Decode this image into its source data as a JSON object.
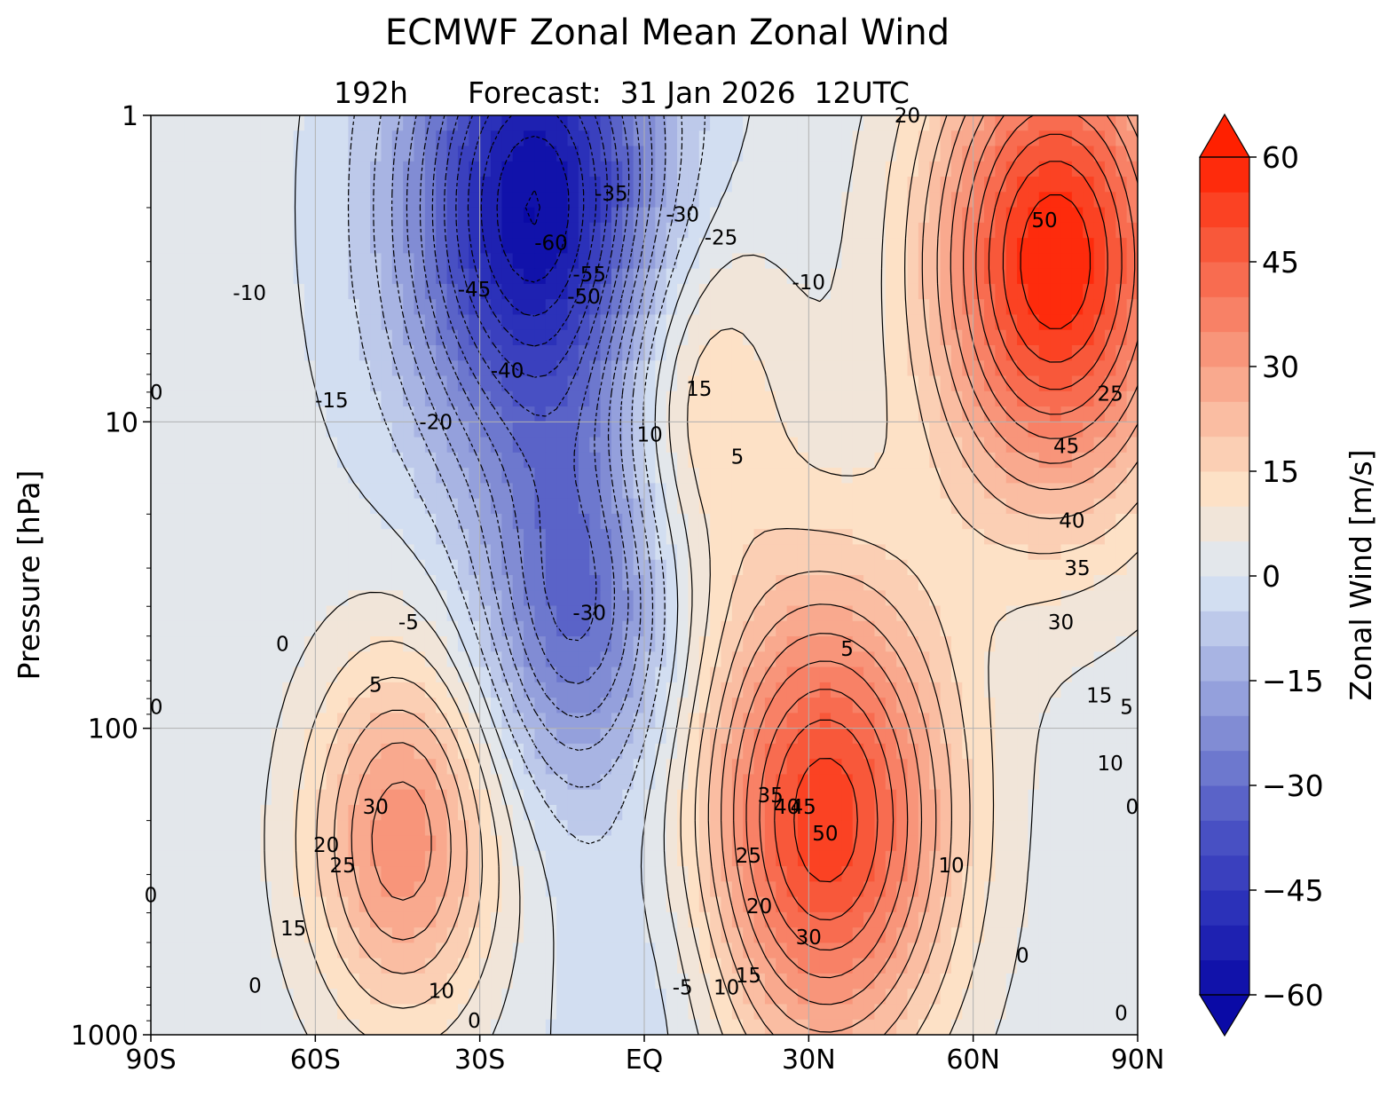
{
  "chart_data": {
    "type": "heatmap",
    "title": "ECMWF Zonal Mean Zonal Wind",
    "subtitle_lead": "192h",
    "subtitle": "Forecast:  31 Jan 2026  12UTC",
    "ylabel": "Pressure [hPa]",
    "yscale": "log",
    "ylim": [
      1000,
      1
    ],
    "xlim": [
      -90,
      90
    ],
    "xticks": [
      {
        "value": -90,
        "label": "90S"
      },
      {
        "value": -60,
        "label": "60S"
      },
      {
        "value": -30,
        "label": "30S"
      },
      {
        "value": 0,
        "label": "EQ"
      },
      {
        "value": 30,
        "label": "30N"
      },
      {
        "value": 60,
        "label": "60N"
      },
      {
        "value": 90,
        "label": "90N"
      }
    ],
    "yticks": [
      {
        "value": 1,
        "label": "1"
      },
      {
        "value": 10,
        "label": "10"
      },
      {
        "value": 100,
        "label": "100"
      },
      {
        "value": 1000,
        "label": "1000"
      }
    ],
    "grid": true,
    "colorbar": {
      "label": "Zonal Wind [m/s]",
      "range": [
        -60,
        60
      ],
      "step": 5,
      "extend": "both",
      "ticks": [
        -60,
        -45,
        -30,
        -15,
        0,
        15,
        30,
        45,
        60
      ],
      "tick_labels": [
        "−60",
        "−45",
        "−30",
        "−15",
        "0",
        "15",
        "30",
        "45",
        "60"
      ],
      "colormap": [
        "#0a0aa6",
        "#2a2fb8",
        "#4c55c4",
        "#7b86d2",
        "#aab6e4",
        "#dce8f4",
        "#fde3c8",
        "#f9b79c",
        "#f8876c",
        "#f85638",
        "#ff2000"
      ]
    },
    "contour_interval": 5,
    "features": [
      {
        "kind": "easterly max",
        "lat": -20,
        "p": 2,
        "value": -62
      },
      {
        "kind": "easterly lobe",
        "lat": -12,
        "p": 40,
        "value": -32
      },
      {
        "kind": "westerly max",
        "lat": 75,
        "p": 3,
        "value": 58
      },
      {
        "kind": "westerly max",
        "lat": -44,
        "p": 230,
        "value": 32
      },
      {
        "kind": "westerly max",
        "lat": 33,
        "p": 200,
        "value": 52
      },
      {
        "kind": "westerly max",
        "lat": 8,
        "p": 8,
        "value": 17
      },
      {
        "kind": "easterly",
        "lat": 0,
        "p": 700,
        "value": -7
      }
    ],
    "contour_labels": [
      {
        "text": "-10",
        "lat": -72,
        "p": 3.8
      },
      {
        "text": "-15",
        "lat": -57,
        "p": 8.5
      },
      {
        "text": "-20",
        "lat": -38,
        "p": 10
      },
      {
        "text": "-5",
        "lat": -43,
        "p": 45
      },
      {
        "text": "-45",
        "lat": -31,
        "p": 3.7
      },
      {
        "text": "-60",
        "lat": -17,
        "p": 2.6
      },
      {
        "text": "-55",
        "lat": -10,
        "p": 3.3
      },
      {
        "text": "-50",
        "lat": -11,
        "p": 3.9
      },
      {
        "text": "-35",
        "lat": -6,
        "p": 1.8
      },
      {
        "text": "-30",
        "lat": 7,
        "p": 2.1
      },
      {
        "text": "-25",
        "lat": 14,
        "p": 2.5
      },
      {
        "text": "-40",
        "lat": -25,
        "p": 6.8
      },
      {
        "text": "-30",
        "lat": -10,
        "p": 42
      },
      {
        "text": "-10",
        "lat": 30,
        "p": 3.5
      },
      {
        "text": "-5",
        "lat": 7,
        "p": 700
      },
      {
        "text": "15",
        "lat": 10,
        "p": 7.8
      },
      {
        "text": "10",
        "lat": 1,
        "p": 11
      },
      {
        "text": "5",
        "lat": 17,
        "p": 13
      },
      {
        "text": "5",
        "lat": 37,
        "p": 55
      },
      {
        "text": "0",
        "lat": -66,
        "p": 53
      },
      {
        "text": "5",
        "lat": -49,
        "p": 72
      },
      {
        "text": "0",
        "lat": -89,
        "p": 8
      },
      {
        "text": "0",
        "lat": -89,
        "p": 85
      },
      {
        "text": "0",
        "lat": -90,
        "p": 350
      },
      {
        "text": "0",
        "lat": -71,
        "p": 690
      },
      {
        "text": "0",
        "lat": -31,
        "p": 900
      },
      {
        "text": "30",
        "lat": -49,
        "p": 180
      },
      {
        "text": "20",
        "lat": -58,
        "p": 240
      },
      {
        "text": "25",
        "lat": -55,
        "p": 280
      },
      {
        "text": "15",
        "lat": -64,
        "p": 450
      },
      {
        "text": "10",
        "lat": -37,
        "p": 720
      },
      {
        "text": "50",
        "lat": 33,
        "p": 220
      },
      {
        "text": "45",
        "lat": 29,
        "p": 180
      },
      {
        "text": "40",
        "lat": 26,
        "p": 180
      },
      {
        "text": "35",
        "lat": 23,
        "p": 165
      },
      {
        "text": "25",
        "lat": 19,
        "p": 260
      },
      {
        "text": "20",
        "lat": 21,
        "p": 380
      },
      {
        "text": "30",
        "lat": 30,
        "p": 480
      },
      {
        "text": "15",
        "lat": 19,
        "p": 640
      },
      {
        "text": "10",
        "lat": 15,
        "p": 700
      },
      {
        "text": "10",
        "lat": 56,
        "p": 280
      },
      {
        "text": "0",
        "lat": 69,
        "p": 550
      },
      {
        "text": "0",
        "lat": 87,
        "p": 850
      },
      {
        "text": "50",
        "lat": 73,
        "p": 2.2
      },
      {
        "text": "25",
        "lat": 85,
        "p": 8.1
      },
      {
        "text": "45",
        "lat": 77,
        "p": 12
      },
      {
        "text": "40",
        "lat": 78,
        "p": 21
      },
      {
        "text": "35",
        "lat": 79,
        "p": 30
      },
      {
        "text": "30",
        "lat": 76,
        "p": 45
      },
      {
        "text": "15",
        "lat": 83,
        "p": 78
      },
      {
        "text": "10",
        "lat": 85,
        "p": 130
      },
      {
        "text": "5",
        "lat": 88,
        "p": 85
      },
      {
        "text": "0",
        "lat": 89,
        "p": 180
      },
      {
        "text": "20",
        "lat": 48,
        "p": 1.0
      }
    ]
  }
}
